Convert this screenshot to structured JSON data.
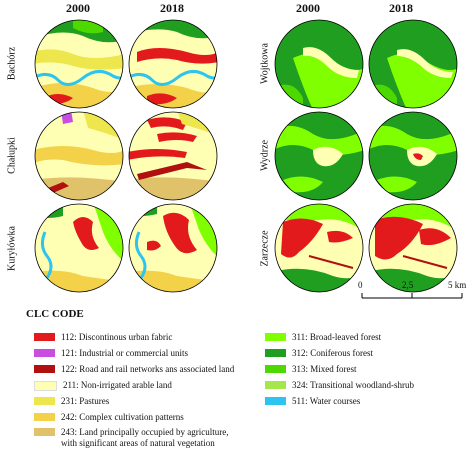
{
  "years": [
    "2000",
    "2018"
  ],
  "sites_left": [
    "Bachórz",
    "Chałupki",
    "Kuryłówka"
  ],
  "sites_right": [
    "Wojtkowa",
    "Wydrze",
    "Zarzecze"
  ],
  "scale": {
    "ticks": [
      "0",
      "2,5",
      "5 km"
    ]
  },
  "legend": {
    "title": "CLC CODE",
    "left": [
      {
        "code": "112: Discontinous urban fabric",
        "color": "#e31a1c"
      },
      {
        "code": "121: Industrial or commercial units",
        "color": "#c84de0"
      },
      {
        "code": "122: Road and rail networks ans associated land",
        "color": "#b01010"
      },
      {
        "code": "211: Non-irrigated arable land",
        "color": "#ffffb4"
      },
      {
        "code": "231: Pastures",
        "color": "#eee64d"
      },
      {
        "code": "242: Complex cultivation patterns",
        "color": "#f3d24a"
      },
      {
        "code": "243: Land principally occupied by agriculture,",
        "code2": "with significant areas of natural vegetation",
        "color": "#e0c26a"
      }
    ],
    "right": [
      {
        "code": "311: Broad-leaved forest",
        "color": "#80ff00"
      },
      {
        "code": "312: Coniferous forest",
        "color": "#1f9e1f"
      },
      {
        "code": "313: Mixed forest",
        "color": "#4dd900"
      },
      {
        "code": "324: Transitional woodland-shrub",
        "color": "#a6e64d"
      },
      {
        "code": "511: Water courses",
        "color": "#2ec4f0"
      }
    ]
  }
}
